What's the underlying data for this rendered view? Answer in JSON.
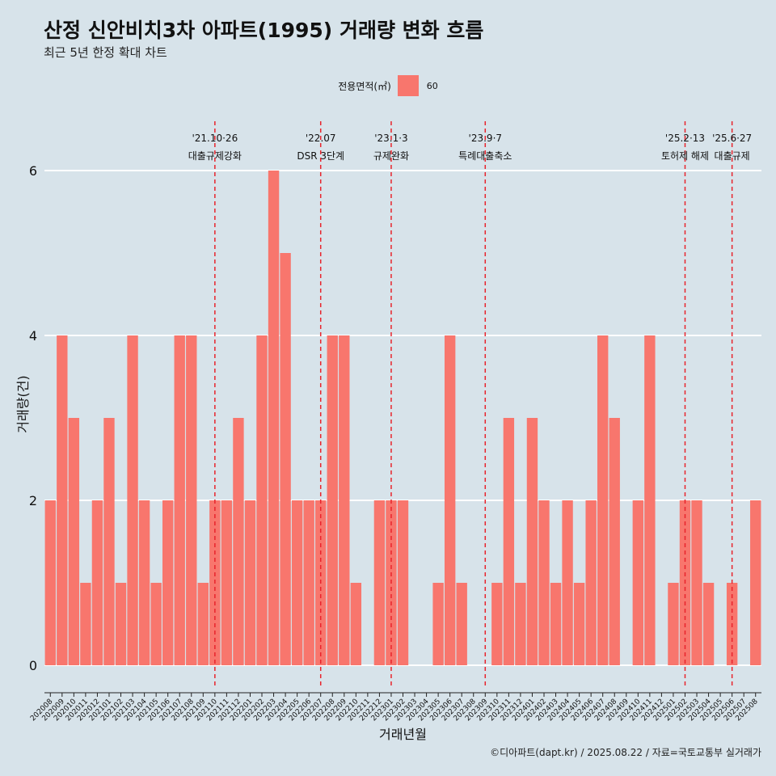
{
  "title": "산정 신안비치3차 아파트(1995) 거래량 변화 흐름",
  "subtitle": "최근 5년 한정 확대 차트",
  "source": "©디아파트(dapt.kr) / 2025.08.22 / 자료=국토교통부 실거래가",
  "colors": {
    "bar": "#f8766d",
    "background": "#d7e3ea",
    "grid": "#ffffff",
    "event_line": "#e8242c"
  },
  "chart_data": {
    "type": "bar",
    "xlabel": "거래년월",
    "ylabel": "거래량(건)",
    "ylim": [
      0,
      6
    ],
    "yticks": [
      0,
      2,
      4,
      6
    ],
    "grid": true,
    "legend": {
      "title": "전용면적(㎡)",
      "placement": "top",
      "entries": [
        "60"
      ]
    },
    "categories": [
      "202008",
      "202009",
      "202010",
      "202011",
      "202012",
      "202101",
      "202102",
      "202103",
      "202104",
      "202105",
      "202106",
      "202107",
      "202108",
      "202109",
      "202110",
      "202111",
      "202112",
      "202201",
      "202202",
      "202203",
      "202204",
      "202205",
      "202206",
      "202207",
      "202208",
      "202209",
      "202210",
      "202211",
      "202212",
      "202301",
      "202302",
      "202303",
      "202304",
      "202305",
      "202306",
      "202307",
      "202308",
      "202309",
      "202310",
      "202311",
      "202312",
      "202401",
      "202402",
      "202403",
      "202404",
      "202405",
      "202406",
      "202407",
      "202408",
      "202409",
      "202410",
      "202411",
      "202412",
      "202501",
      "202502",
      "202503",
      "202504",
      "202505",
      "202506",
      "202507",
      "202508"
    ],
    "series": [
      {
        "name": "60",
        "values": [
          2,
          4,
          3,
          1,
          2,
          3,
          1,
          4,
          2,
          1,
          2,
          4,
          4,
          1,
          2,
          2,
          3,
          2,
          4,
          6,
          5,
          2,
          2,
          2,
          4,
          4,
          1,
          0,
          2,
          2,
          2,
          0,
          0,
          1,
          4,
          1,
          0,
          0,
          1,
          3,
          1,
          3,
          2,
          1,
          2,
          1,
          2,
          4,
          3,
          0,
          2,
          4,
          0,
          1,
          2,
          2,
          1,
          0,
          1,
          0,
          2
        ]
      }
    ],
    "annotations": [
      {
        "date_label": "'21.10·26",
        "text": "대출규제강화",
        "x": "202110"
      },
      {
        "date_label": "'22.07",
        "text": "DSR 3단계",
        "x": "202207"
      },
      {
        "date_label": "'23.1·3",
        "text": "규제완화",
        "x": "202301"
      },
      {
        "date_label": "'23.9·7",
        "text": "특례대출축소",
        "x": "202309"
      },
      {
        "date_label": "'25.2·13",
        "text": "토허제 해제",
        "x": "202502"
      },
      {
        "date_label": "'25.6·27",
        "text": "대출규제",
        "x": "202506"
      }
    ]
  }
}
